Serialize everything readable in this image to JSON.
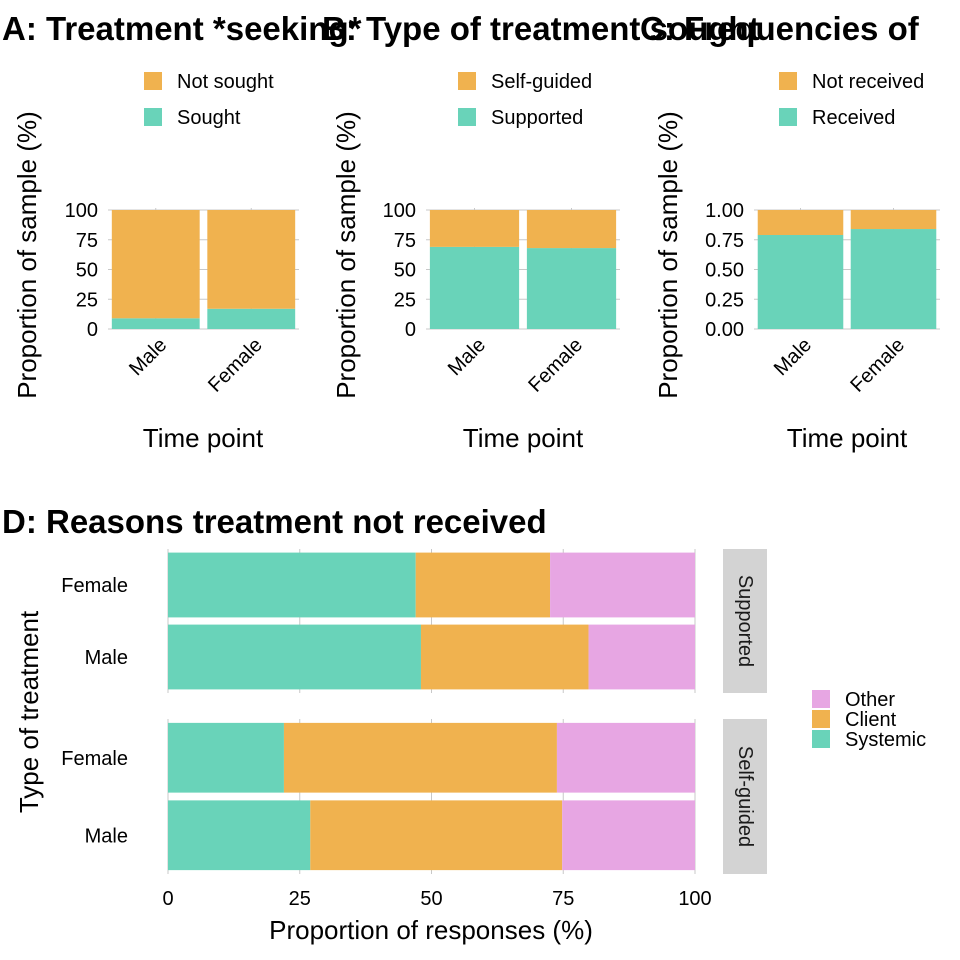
{
  "colors": {
    "teal": "#69D3B9",
    "orange": "#F0B24F",
    "pink": "#E7A6E3",
    "grid": "#C8C8C8",
    "strip": "#D3D3D3",
    "background": "#FFFFFF"
  },
  "chart_data": [
    {
      "id": "A",
      "type": "bar",
      "stacked": true,
      "title": "A: Treatment *seeking*",
      "xlabel": "Time point",
      "ylabel": "Proportion of sample (%)",
      "ylim": [
        0,
        100
      ],
      "yticks": [
        "0",
        "25",
        "50",
        "75",
        "100"
      ],
      "categories": [
        "Male",
        "Female"
      ],
      "legend_position": "top",
      "series": [
        {
          "name": "Sought",
          "color": "#69D3B9",
          "values": [
            9,
            17
          ]
        },
        {
          "name": "Not sought",
          "color": "#F0B24F",
          "values": [
            91,
            83
          ]
        }
      ],
      "legend_order": [
        "Not sought",
        "Sought"
      ]
    },
    {
      "id": "B",
      "type": "bar",
      "stacked": true,
      "title": "B: Type of treatment sought",
      "xlabel": "Time point",
      "ylabel": "Proportion of sample (%)",
      "ylim": [
        0,
        100
      ],
      "yticks": [
        "0",
        "25",
        "50",
        "75",
        "100"
      ],
      "categories": [
        "Male",
        "Female"
      ],
      "legend_position": "top",
      "series": [
        {
          "name": "Supported",
          "color": "#69D3B9",
          "values": [
            69,
            68
          ]
        },
        {
          "name": "Self-guided",
          "color": "#F0B24F",
          "values": [
            31,
            32
          ]
        }
      ],
      "legend_order": [
        "Self-guided",
        "Supported"
      ]
    },
    {
      "id": "C",
      "type": "bar",
      "stacked": true,
      "title": "C: Frequencies of",
      "xlabel": "Time point",
      "ylabel": "Proportion of sample (%)",
      "ylim": [
        0,
        1
      ],
      "yticks": [
        "0.00",
        "0.25",
        "0.50",
        "0.75",
        "1.00"
      ],
      "categories": [
        "Male",
        "Female"
      ],
      "legend_position": "top",
      "series": [
        {
          "name": "Received",
          "color": "#69D3B9",
          "values": [
            0.79,
            0.84
          ]
        },
        {
          "name": "Not received",
          "color": "#F0B24F",
          "values": [
            0.21,
            0.16
          ]
        }
      ],
      "legend_order": [
        "Not received",
        "Received"
      ]
    },
    {
      "id": "D",
      "type": "bar",
      "orientation": "horizontal",
      "stacked": true,
      "title": "D: Reasons treatment not received",
      "xlabel": "Proportion of responses (%)",
      "ylabel": "Type of treatment",
      "xlim": [
        0,
        100
      ],
      "xticks": [
        "0",
        "25",
        "50",
        "75",
        "100"
      ],
      "legend_position": "right",
      "legend_order": [
        "Other",
        "Client",
        "Systemic"
      ],
      "series_colors": {
        "Systemic": "#69D3B9",
        "Client": "#F0B24F",
        "Other": "#E7A6E3"
      },
      "facets": [
        {
          "label": "Supported",
          "rows": [
            {
              "label": "Female",
              "Systemic": 47,
              "Client": 25.5,
              "Other": 27.5
            },
            {
              "label": "Male",
              "Systemic": 48,
              "Client": 31.8,
              "Other": 20.2
            }
          ]
        },
        {
          "label": "Self-guided",
          "rows": [
            {
              "label": "Female",
              "Systemic": 22,
              "Client": 51.8,
              "Other": 26.2
            },
            {
              "label": "Male",
              "Systemic": 27,
              "Client": 47.8,
              "Other": 25.2
            }
          ]
        }
      ]
    }
  ]
}
